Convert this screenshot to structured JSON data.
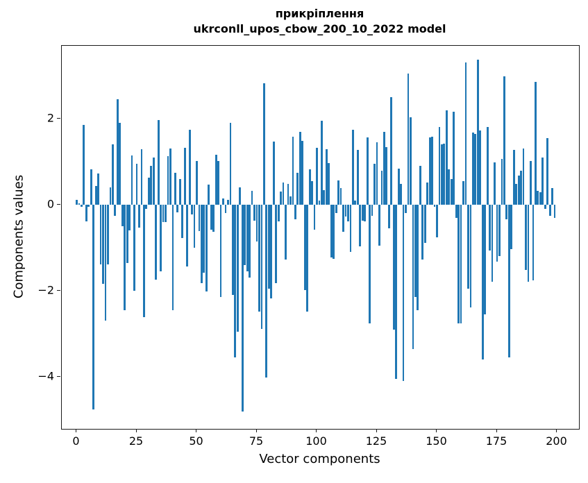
{
  "title": {
    "line1": "прикріплення",
    "line2": "ukrconll_upos_cbow_200_10_2022 model"
  },
  "chart_data": {
    "type": "bar",
    "title": "прикріплення\nukrconll_upos_cbow_200_10_2022 model",
    "xlabel": "Vector components",
    "ylabel": "Components values",
    "x_range": [
      0,
      199
    ],
    "xlim": [
      -10,
      210
    ],
    "ylim": [
      -5.2,
      3.7
    ],
    "grid": false,
    "legend": "none",
    "bar_color": "#1f77b4",
    "x_ticks": [
      0,
      25,
      50,
      75,
      100,
      125,
      150,
      175,
      200
    ],
    "y_ticks": [
      {
        "value": 2,
        "label": "2"
      },
      {
        "value": 0,
        "label": "0"
      },
      {
        "value": -2,
        "label": "−2"
      },
      {
        "value": -4,
        "label": "−4"
      }
    ],
    "values": [
      0.12,
      0.03,
      -0.05,
      1.85,
      -0.39,
      -0.05,
      0.83,
      -4.75,
      0.43,
      0.72,
      -1.39,
      -1.84,
      -2.7,
      -1.38,
      0.41,
      1.41,
      -0.25,
      2.45,
      1.9,
      -0.5,
      -2.45,
      -1.35,
      -0.6,
      1.15,
      -2.0,
      0.95,
      -0.53,
      1.29,
      -2.62,
      -0.1,
      0.63,
      0.9,
      1.1,
      -1.74,
      1.97,
      -1.55,
      -0.4,
      -0.4,
      1.13,
      1.31,
      -2.45,
      0.74,
      -0.18,
      0.6,
      -0.77,
      1.33,
      -1.44,
      1.74,
      -0.23,
      -1.0,
      1.02,
      -0.61,
      -1.82,
      -1.58,
      -2.01,
      0.47,
      -0.58,
      -0.63,
      1.16,
      1.01,
      -2.14,
      0.15,
      -0.2,
      0.12,
      1.9,
      -2.1,
      -3.55,
      -2.95,
      0.4,
      -4.8,
      -1.4,
      -1.55,
      -1.7,
      0.33,
      -0.37,
      -0.85,
      -2.49,
      -2.89,
      2.83,
      -4.02,
      -1.95,
      -2.17,
      1.47,
      -1.82,
      -0.39,
      0.3,
      0.51,
      -1.28,
      0.48,
      0.2,
      1.58,
      -0.34,
      0.74,
      1.7,
      1.49,
      -1.98,
      -2.49,
      0.83,
      0.55,
      -0.58,
      1.33,
      0.1,
      1.95,
      0.34,
      1.29,
      0.97,
      -1.23,
      -1.25,
      -0.2,
      0.56,
      0.38,
      -0.63,
      -0.28,
      -0.39,
      -1.09,
      1.75,
      0.1,
      1.27,
      -0.96,
      -0.37,
      -0.39,
      1.57,
      -2.75,
      -0.26,
      0.95,
      1.45,
      -0.95,
      0.79,
      1.69,
      1.34,
      -0.55,
      2.5,
      -2.9,
      -4.05,
      0.84,
      0.49,
      -4.1,
      -0.2,
      3.05,
      2.04,
      -3.35,
      -2.15,
      -2.45,
      0.9,
      -1.28,
      -0.88,
      0.51,
      1.56,
      1.58,
      -0.05,
      -0.75,
      1.81,
      1.41,
      1.42,
      2.19,
      0.83,
      0.6,
      2.16,
      -0.3,
      -2.75,
      -2.75,
      0.55,
      3.3,
      -1.95,
      -2.38,
      1.68,
      1.65,
      3.37,
      1.72,
      -3.6,
      -2.55,
      1.8,
      -1.06,
      -1.79,
      0.98,
      -1.33,
      -1.2,
      1.06,
      2.99,
      -0.34,
      -3.55,
      -1.04,
      1.27,
      0.49,
      0.68,
      0.79,
      1.31,
      -1.52,
      -1.79,
      1.02,
      -1.76,
      2.85,
      0.33,
      0.29,
      1.1,
      -0.1,
      1.55,
      -0.26,
      0.38,
      -0.31
    ]
  }
}
